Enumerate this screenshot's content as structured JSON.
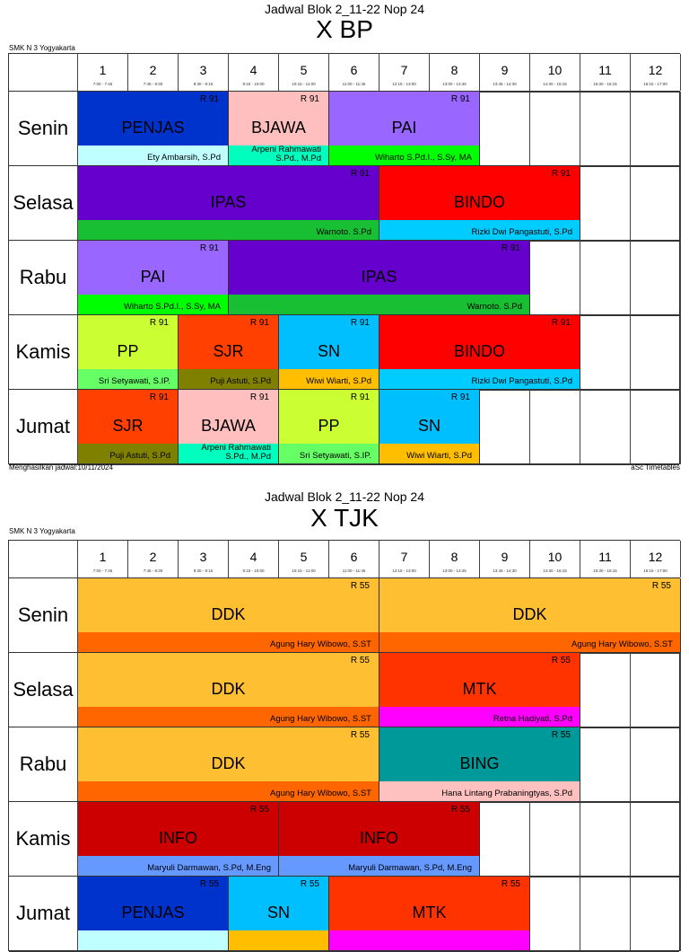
{
  "periods": [
    {
      "n": "1",
      "time": "7:00 - 7:45"
    },
    {
      "n": "2",
      "time": "7:45 - 8:30"
    },
    {
      "n": "3",
      "time": "8:30 - 9:15"
    },
    {
      "n": "4",
      "time": "9:15 - 10:00"
    },
    {
      "n": "5",
      "time": "10:15 - 11:00"
    },
    {
      "n": "6",
      "time": "11:00 - 11:45"
    },
    {
      "n": "7",
      "time": "12:15 - 13:00"
    },
    {
      "n": "8",
      "time": "13:00 - 13:45"
    },
    {
      "n": "9",
      "time": "13:45 - 14:30"
    },
    {
      "n": "10",
      "time": "14:30 - 15:15"
    },
    {
      "n": "11",
      "time": "15:30 - 16:15"
    },
    {
      "n": "12",
      "time": "16:15 - 17:00"
    }
  ],
  "schedules": [
    {
      "subtitle": "Jadwal Blok 2_11-22 Nop 24",
      "class_name": "X BP",
      "school": "SMK N 3 Yogyakarta",
      "footer_left": "Menghasilkan jadwal:10/11/2024",
      "footer_right": "aSc Timetables",
      "days": [
        {
          "name": "Senin",
          "lessons": [
            {
              "start": 1,
              "span": 3,
              "subject": "PENJAS",
              "room": "R 91",
              "teacher": "Ety Ambarsih, S.Pd",
              "color": "#0033cc",
              "tcolor": "#c0ffff"
            },
            {
              "start": 4,
              "span": 2,
              "subject": "BJAWA",
              "room": "R 91",
              "teacher": "Arpeni Rahmawati S.Pd., M.Pd",
              "color": "#ffbfbf",
              "tcolor": "#00ffbf"
            },
            {
              "start": 6,
              "span": 3,
              "subject": "PAI",
              "room": "R 91",
              "teacher": "Wiharto S.Pd.I., S.Sy, MA",
              "color": "#9966ff",
              "tcolor": "#00ff00"
            }
          ]
        },
        {
          "name": "Selasa",
          "lessons": [
            {
              "start": 1,
              "span": 6,
              "subject": "IPAS",
              "room": "R 91",
              "teacher": "Warnoto. S.Pd",
              "color": "#6600cc",
              "tcolor": "#19bf33"
            },
            {
              "start": 7,
              "span": 4,
              "subject": "BINDO",
              "room": "R 91",
              "teacher": "Rizki Dwi Pangastuti, S.Pd",
              "color": "#ff0000",
              "tcolor": "#00ccff"
            }
          ]
        },
        {
          "name": "Rabu",
          "lessons": [
            {
              "start": 1,
              "span": 3,
              "subject": "PAI",
              "room": "R 91",
              "teacher": "Wiharto S.Pd.I., S.Sy, MA",
              "color": "#9966ff",
              "tcolor": "#00ff00"
            },
            {
              "start": 4,
              "span": 6,
              "subject": "IPAS",
              "room": "R 91",
              "teacher": "Warnoto. S.Pd",
              "color": "#6600cc",
              "tcolor": "#19bf33"
            }
          ]
        },
        {
          "name": "Kamis",
          "lessons": [
            {
              "start": 1,
              "span": 2,
              "subject": "PP",
              "room": "R 91",
              "teacher": "Sri Setyawati, S.IP.",
              "color": "#ccff33",
              "tcolor": "#66ff66"
            },
            {
              "start": 3,
              "span": 2,
              "subject": "SJR",
              "room": "R 91",
              "teacher": "Puji Astuti, S.Pd",
              "color": "#ff4000",
              "tcolor": "#808000"
            },
            {
              "start": 5,
              "span": 2,
              "subject": "SN",
              "room": "R 91",
              "teacher": "Wiwi Wiarti, S.Pd",
              "color": "#00bfff",
              "tcolor": "#ffbf00"
            },
            {
              "start": 7,
              "span": 4,
              "subject": "BINDO",
              "room": "R 91",
              "teacher": "Rizki Dwi Pangastuti, S.Pd",
              "color": "#ff0000",
              "tcolor": "#00ccff"
            }
          ]
        },
        {
          "name": "Jumat",
          "lessons": [
            {
              "start": 1,
              "span": 2,
              "subject": "SJR",
              "room": "R 91",
              "teacher": "Puji Astuti, S.Pd",
              "color": "#ff4000",
              "tcolor": "#808000"
            },
            {
              "start": 3,
              "span": 2,
              "subject": "BJAWA",
              "room": "R 91",
              "teacher": "Arpeni Rahmawati S.Pd., M.Pd",
              "color": "#ffbfbf",
              "tcolor": "#00ffbf"
            },
            {
              "start": 5,
              "span": 2,
              "subject": "PP",
              "room": "R 91",
              "teacher": "Sri Setyawati, S.IP.",
              "color": "#ccff33",
              "tcolor": "#66ff66"
            },
            {
              "start": 7,
              "span": 2,
              "subject": "SN",
              "room": "R 91",
              "teacher": "Wiwi Wiarti, S.Pd",
              "color": "#00bfff",
              "tcolor": "#ffbf00"
            }
          ]
        }
      ]
    },
    {
      "subtitle": "Jadwal Blok 2_11-22 Nop 24",
      "class_name": "X TJK",
      "school": "SMK N 3 Yogyakarta",
      "days": [
        {
          "name": "Senin",
          "lessons": [
            {
              "start": 1,
              "span": 6,
              "subject": "DDK",
              "room": "R 55",
              "teacher": "Agung Hary Wibowo, S.ST",
              "color": "#ffbf33",
              "tcolor": "#ff6600"
            },
            {
              "start": 7,
              "span": 6,
              "subject": "DDK",
              "room": "R 55",
              "teacher": "Agung Hary Wibowo, S.ST",
              "color": "#ffbf33",
              "tcolor": "#ff6600"
            }
          ]
        },
        {
          "name": "Selasa",
          "lessons": [
            {
              "start": 1,
              "span": 6,
              "subject": "DDK",
              "room": "R 55",
              "teacher": "Agung Hary Wibowo, S.ST",
              "color": "#ffbf33",
              "tcolor": "#ff6600"
            },
            {
              "start": 7,
              "span": 4,
              "subject": "MTK",
              "room": "R 55",
              "teacher": "Retna Hadiyati, S.Pd",
              "color": "#ff3300",
              "tcolor": "#ff00ff"
            }
          ]
        },
        {
          "name": "Rabu",
          "lessons": [
            {
              "start": 1,
              "span": 6,
              "subject": "DDK",
              "room": "R 55",
              "teacher": "Agung Hary Wibowo, S.ST",
              "color": "#ffbf33",
              "tcolor": "#ff6600"
            },
            {
              "start": 7,
              "span": 4,
              "subject": "BING",
              "room": "R 55",
              "teacher": "Hana Lintang Prabaningtyas, S.Pd",
              "color": "#009999",
              "tcolor": "#ffc0c0"
            }
          ]
        },
        {
          "name": "Kamis",
          "lessons": [
            {
              "start": 1,
              "span": 4,
              "subject": "INFO",
              "room": "R 55",
              "teacher": "Maryuli Darmawan, S.Pd, M.Eng",
              "color": "#cc0000",
              "tcolor": "#6699ff"
            },
            {
              "start": 5,
              "span": 4,
              "subject": "INFO",
              "room": "R 55",
              "teacher": "Maryuli Darmawan, S.Pd, M.Eng",
              "color": "#cc0000",
              "tcolor": "#6699ff"
            }
          ]
        },
        {
          "name": "Jumat",
          "lessons": [
            {
              "start": 1,
              "span": 3,
              "subject": "PENJAS",
              "room": "R 55",
              "teacher": "",
              "color": "#0033cc",
              "tcolor": "#c0ffff"
            },
            {
              "start": 4,
              "span": 2,
              "subject": "SN",
              "room": "R 55",
              "teacher": "",
              "color": "#00bfff",
              "tcolor": "#ffbf00"
            },
            {
              "start": 6,
              "span": 4,
              "subject": "MTK",
              "room": "R 55",
              "teacher": "",
              "color": "#ff3300",
              "tcolor": "#ff00ff"
            }
          ]
        }
      ]
    }
  ]
}
